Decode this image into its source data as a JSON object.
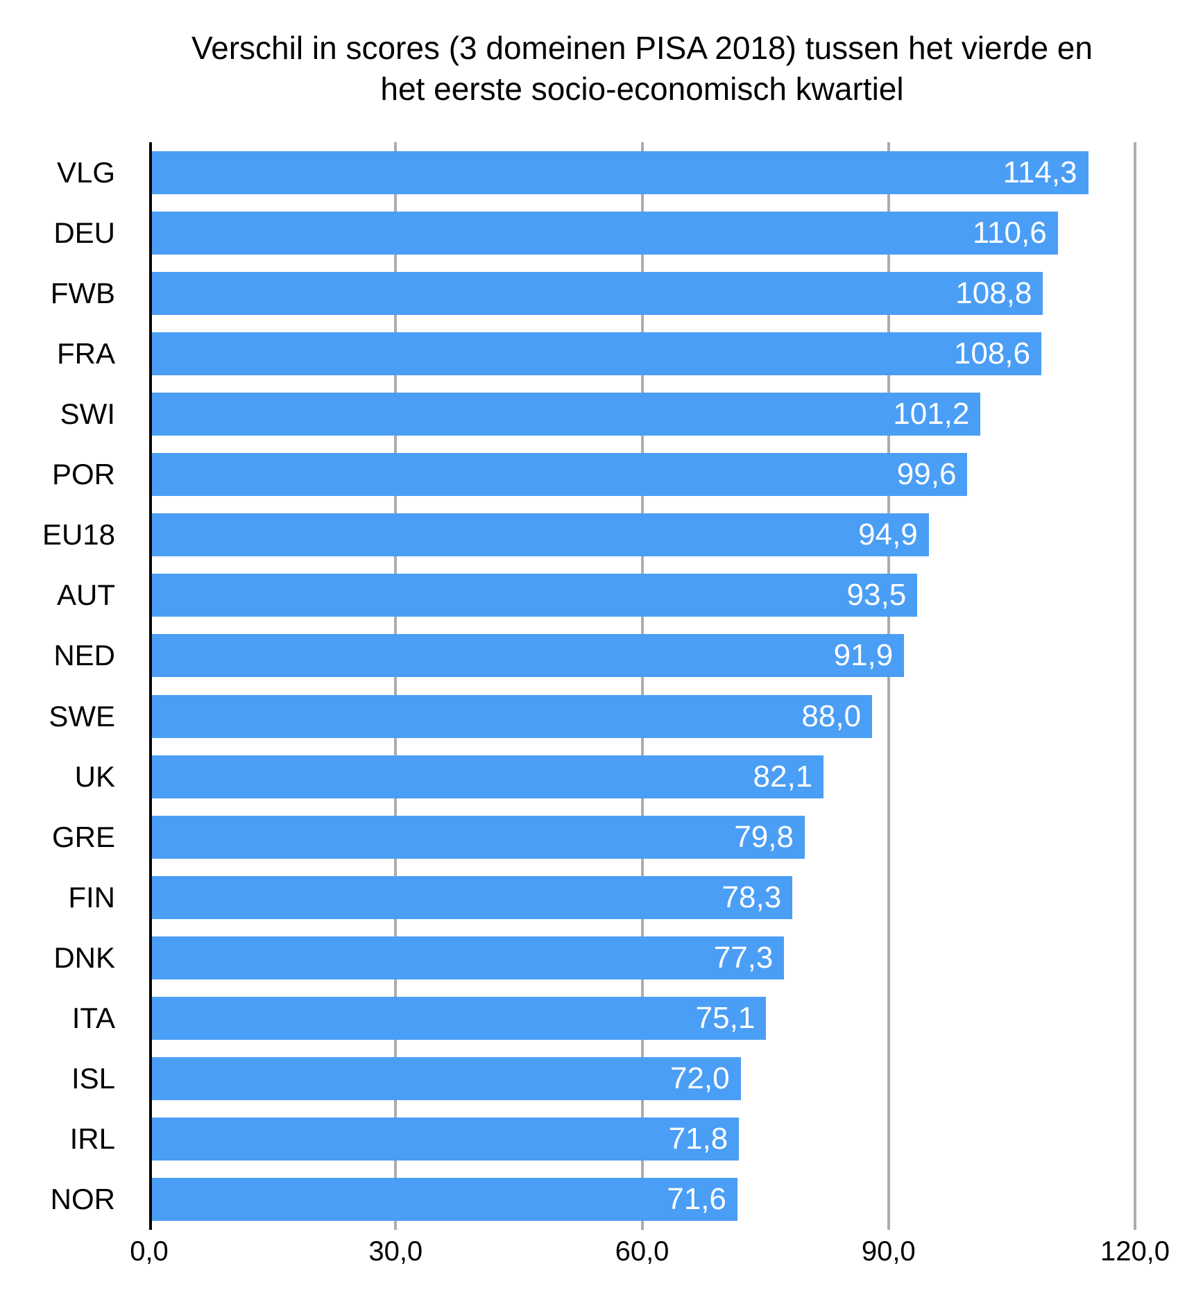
{
  "title": {
    "line1": "Verschil in scores (3 domeinen PISA 2018) tussen het vierde en",
    "line2": "het eerste socio-economisch kwartiel"
  },
  "chart_data": {
    "type": "bar",
    "orientation": "horizontal",
    "title": "Verschil in scores (3 domeinen PISA 2018) tussen het vierde en het eerste socio-economisch kwartiel",
    "categories": [
      "VLG",
      "DEU",
      "FWB",
      "FRA",
      "SWI",
      "POR",
      "EU18",
      "AUT",
      "NED",
      "SWE",
      "UK",
      "GRE",
      "FIN",
      "DNK",
      "ITA",
      "ISL",
      "IRL",
      "NOR"
    ],
    "values": [
      114.3,
      110.6,
      108.8,
      108.6,
      101.2,
      99.6,
      94.9,
      93.5,
      91.9,
      88.0,
      82.1,
      79.8,
      78.3,
      77.3,
      75.1,
      72.0,
      71.8,
      71.6
    ],
    "value_labels": [
      "114,3",
      "110,6",
      "108,8",
      "108,6",
      "101,2",
      "99,6",
      "94,9",
      "93,5",
      "91,9",
      "88,0",
      "82,1",
      "79,8",
      "78,3",
      "77,3",
      "75,1",
      "72,0",
      "71,8",
      "71,6"
    ],
    "x_ticks": [
      {
        "value": 0,
        "label": "0,0"
      },
      {
        "value": 30,
        "label": "30,0"
      },
      {
        "value": 60,
        "label": "60,0"
      },
      {
        "value": 90,
        "label": "90,0"
      },
      {
        "value": 120,
        "label": "120,0"
      }
    ],
    "xlim": [
      0,
      120
    ],
    "grid": true,
    "legend": false,
    "bar_color": "#4B9EF5",
    "value_label_color": "#FFFFFF",
    "gridline_color": "#ACACAC",
    "axis_color": "#000000",
    "text_color": "#000000"
  }
}
